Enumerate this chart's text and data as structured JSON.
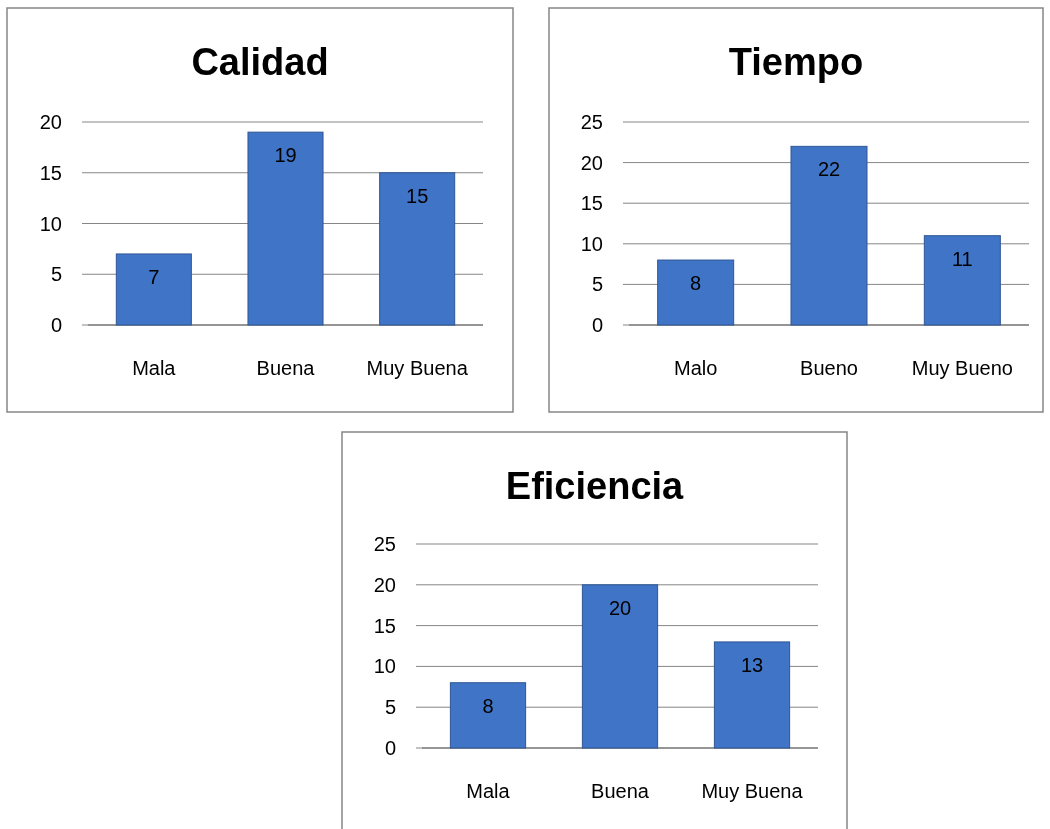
{
  "chart_data": [
    {
      "type": "bar",
      "title": "Calidad",
      "categories": [
        "Mala",
        "Buena",
        "Muy Buena"
      ],
      "values": [
        7,
        19,
        15
      ],
      "color": "#3f74c6",
      "ylim": [
        0,
        20
      ],
      "yticks": [
        0,
        5,
        10,
        15,
        20
      ],
      "grid": "y",
      "data_labels": true
    },
    {
      "type": "bar",
      "title": "Tiempo",
      "categories": [
        "Malo",
        "Bueno",
        "Muy Bueno"
      ],
      "values": [
        8,
        22,
        11
      ],
      "color": "#3f74c6",
      "ylim": [
        0,
        25
      ],
      "yticks": [
        0,
        5,
        10,
        15,
        20,
        25
      ],
      "grid": "y",
      "data_labels": true
    },
    {
      "type": "bar",
      "title": "Eficiencia",
      "categories": [
        "Mala",
        "Buena",
        "Muy Buena"
      ],
      "values": [
        8,
        20,
        13
      ],
      "color": "#3f74c6",
      "ylim": [
        0,
        25
      ],
      "yticks": [
        0,
        5,
        10,
        15,
        20,
        25
      ],
      "grid": "y",
      "data_labels": true
    }
  ]
}
